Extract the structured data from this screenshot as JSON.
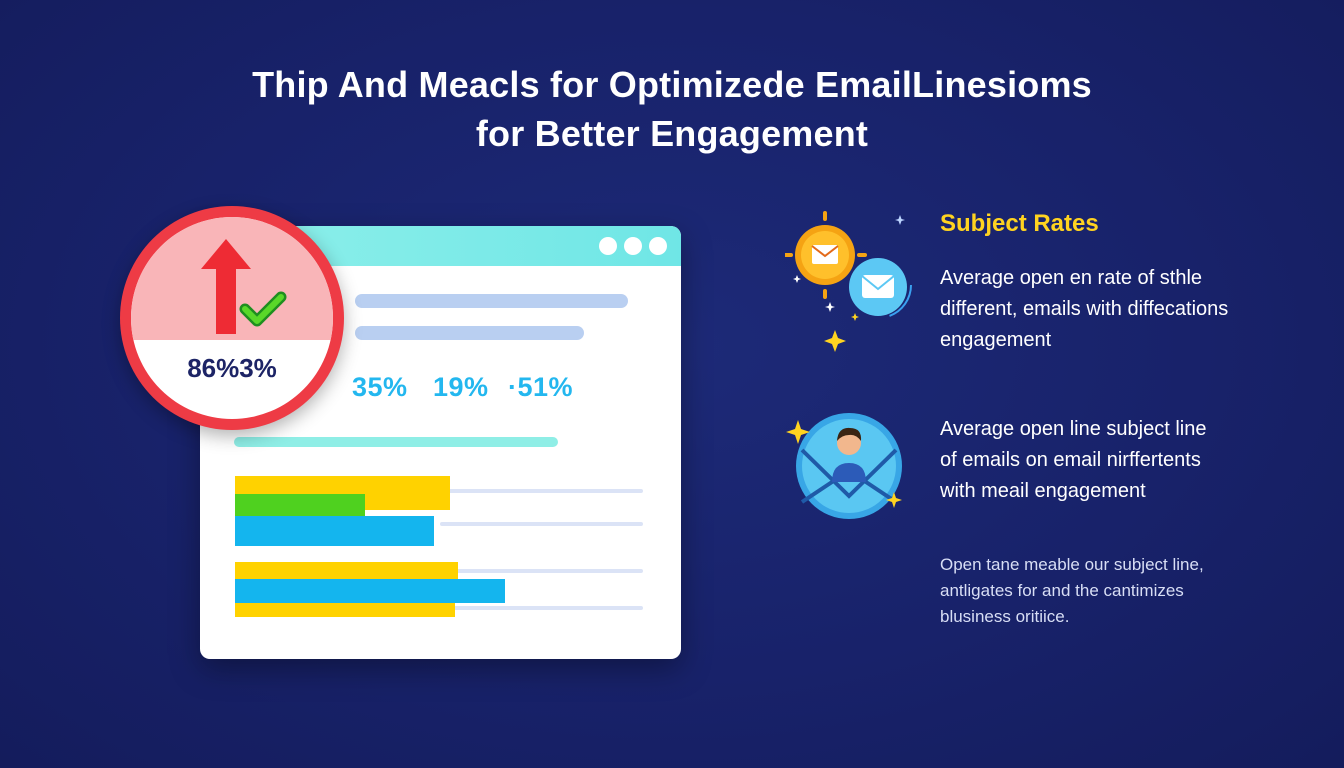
{
  "title": {
    "line1": "Thip And Meacls for Optimizede EmailLinesioms",
    "line2": "for Better Engagement"
  },
  "badge": {
    "value": "86%3%"
  },
  "stats": [
    "35%",
    "19%",
    "·51%"
  ],
  "right_panel": {
    "heading": "Subject Rates",
    "block1": [
      "Average open en rate of sthle",
      "different, emails with diffecations",
      "engagement"
    ],
    "block2": [
      "Average open line subject line",
      "of emails on email nirffertents",
      "with meail engagement"
    ],
    "block3": [
      "Open tane meable our subject line,",
      "antligates for and the cantimizes",
      "blusiness oritiice."
    ]
  },
  "colors": {
    "background": "#18226a",
    "heading_yellow": "#ffd320",
    "badge_red": "#ee3b45",
    "stat_blue": "#23b7ef",
    "bar_yellow": "#ffd200",
    "bar_green": "#4fd11f",
    "bar_blue": "#14b5ee"
  },
  "icons": [
    "up-arrow-icon",
    "check-icon",
    "envelope-icon",
    "sparkle-icon",
    "user-avatar-icon"
  ]
}
